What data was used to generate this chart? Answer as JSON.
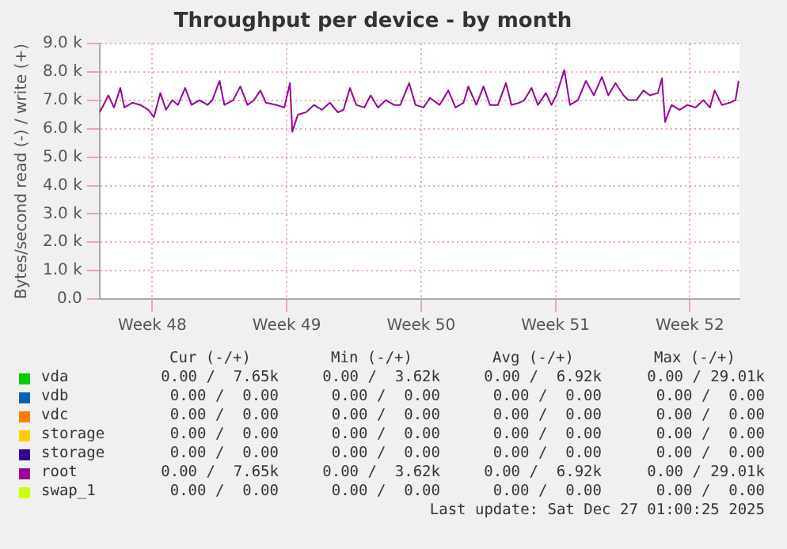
{
  "chart_data": {
    "type": "line",
    "title": "Throughput per device - by month",
    "ylabel": "Bytes/second read (-) / write (+)",
    "x": [
      "2025-11-23T17:00",
      "2025-11-23T22:00",
      "2025-11-24T04:00",
      "2025-11-24T11:00",
      "2025-11-24T19:00",
      "2025-11-25T00:00",
      "2025-11-25T10:00",
      "2025-11-25T20:00",
      "2025-11-26T06:00",
      "2025-11-26T13:00",
      "2025-11-26T21:00",
      "2025-11-27T04:00",
      "2025-11-27T12:00",
      "2025-11-27T19:00",
      "2025-11-28T04:00",
      "2025-11-28T12:00",
      "2025-11-28T22:00",
      "2025-11-29T08:00",
      "2025-11-29T14:00",
      "2025-11-29T23:00",
      "2025-11-30T05:00",
      "2025-11-30T16:00",
      "2025-12-01T01:00",
      "2025-12-01T10:00",
      "2025-12-01T18:00",
      "2025-12-02T02:00",
      "2025-12-02T09:00",
      "2025-12-02T22:00",
      "2025-12-03T08:00",
      "2025-12-03T15:00",
      "2025-12-03T18:00",
      "2025-12-04T01:00",
      "2025-12-04T11:00",
      "2025-12-04T21:00",
      "2025-12-05T07:00",
      "2025-12-05T17:00",
      "2025-12-06T03:00",
      "2025-12-06T10:00",
      "2025-12-06T18:00",
      "2025-12-07T02:00",
      "2025-12-07T12:00",
      "2025-12-07T20:00",
      "2025-12-08T05:00",
      "2025-12-08T15:00",
      "2025-12-09T01:00",
      "2025-12-09T09:00",
      "2025-12-09T20:00",
      "2025-12-10T04:00",
      "2025-12-10T14:00",
      "2025-12-10T22:00",
      "2025-12-11T10:00",
      "2025-12-11T21:00",
      "2025-12-12T06:00",
      "2025-12-12T16:00",
      "2025-12-12T22:00",
      "2025-12-13T08:00",
      "2025-12-13T17:00",
      "2025-12-14T01:00",
      "2025-12-14T11:00",
      "2025-12-14T21:00",
      "2025-12-15T04:00",
      "2025-12-15T14:00",
      "2025-12-15T20:00",
      "2025-12-16T05:00",
      "2025-12-16T13:00",
      "2025-12-16T23:00",
      "2025-12-17T06:00",
      "2025-12-17T12:00",
      "2025-12-17T22:00",
      "2025-12-18T05:00",
      "2025-12-18T15:00",
      "2025-12-19T01:00",
      "2025-12-19T11:00",
      "2025-12-19T21:00",
      "2025-12-20T05:00",
      "2025-12-20T14:00",
      "2025-12-21T00:00",
      "2025-12-21T06:00",
      "2025-12-21T16:00",
      "2025-12-22T01:00",
      "2025-12-22T09:00",
      "2025-12-22T19:00",
      "2025-12-23T00:00",
      "2025-12-23T04:00",
      "2025-12-23T12:00",
      "2025-12-23T22:00",
      "2025-12-24T08:00",
      "2025-12-24T18:00",
      "2025-12-25T04:00",
      "2025-12-25T12:00",
      "2025-12-25T18:00",
      "2025-12-26T03:00",
      "2025-12-26T13:00",
      "2025-12-26T20:00",
      "2025-12-27T00:00"
    ],
    "xlim": [
      "2025-11-23T17:00",
      "2025-12-27T01:00"
    ],
    "xticks": [
      {
        "value": "2025-11-26T11:00",
        "label": "Week 48"
      },
      {
        "value": "2025-12-03T11:00",
        "label": "Week 49"
      },
      {
        "value": "2025-12-10T11:00",
        "label": "Week 50"
      },
      {
        "value": "2025-12-17T11:00",
        "label": "Week 51"
      },
      {
        "value": "2025-12-24T11:00",
        "label": "Week 52"
      }
    ],
    "ylim": [
      0,
      9000
    ],
    "yticks": [
      {
        "value": 0,
        "label": "0.0"
      },
      {
        "value": 1000,
        "label": "1.0 k"
      },
      {
        "value": 2000,
        "label": "2.0 k"
      },
      {
        "value": 3000,
        "label": "3.0 k"
      },
      {
        "value": 4000,
        "label": "4.0 k"
      },
      {
        "value": 5000,
        "label": "5.0 k"
      },
      {
        "value": 6000,
        "label": "6.0 k"
      },
      {
        "value": 7000,
        "label": "7.0 k"
      },
      {
        "value": 8000,
        "label": "8.0 k"
      },
      {
        "value": 9000,
        "label": "9.0 k"
      }
    ],
    "grid": true,
    "legend": "bottom",
    "marker": "none",
    "line_style": "solid",
    "series": [
      {
        "name": "vda",
        "color": "#00cc00",
        "values": [
          null,
          null,
          null,
          null,
          null,
          null,
          null,
          null,
          null,
          null,
          null,
          null,
          null,
          null,
          null,
          null,
          null,
          null,
          null,
          null,
          null,
          null,
          null,
          null,
          null,
          null,
          null,
          null,
          null,
          null,
          null,
          null,
          null,
          null,
          null,
          null,
          null,
          null,
          null,
          null,
          null,
          null,
          null,
          null,
          null,
          null,
          null,
          null,
          null,
          null,
          null,
          null,
          null,
          null,
          null,
          null,
          null,
          null,
          null,
          null,
          null,
          null,
          null,
          null,
          null,
          null,
          null,
          null,
          null,
          null,
          null,
          null,
          null,
          null,
          null,
          null,
          null,
          null,
          null,
          null,
          null,
          null,
          null,
          null,
          null,
          null,
          null,
          null,
          null,
          null,
          null,
          null,
          null,
          null,
          null
        ]
      },
      {
        "name": "vdb",
        "color": "#0066b3",
        "values": [
          null,
          null,
          null,
          null,
          null,
          null,
          null,
          null,
          null,
          null,
          null,
          null,
          null,
          null,
          null,
          null,
          null,
          null,
          null,
          null,
          null,
          null,
          null,
          null,
          null,
          null,
          null,
          null,
          null,
          null,
          null,
          null,
          null,
          null,
          null,
          null,
          null,
          null,
          null,
          null,
          null,
          null,
          null,
          null,
          null,
          null,
          null,
          null,
          null,
          null,
          null,
          null,
          null,
          null,
          null,
          null,
          null,
          null,
          null,
          null,
          null,
          null,
          null,
          null,
          null,
          null,
          null,
          null,
          null,
          null,
          null,
          null,
          null,
          null,
          null,
          null,
          null,
          null,
          null,
          null,
          null,
          null,
          null,
          null,
          null,
          null,
          null,
          null,
          null,
          null,
          null,
          null,
          null,
          null,
          null
        ]
      },
      {
        "name": "vdc",
        "color": "#ff8000",
        "values": [
          null,
          null,
          null,
          null,
          null,
          null,
          null,
          null,
          null,
          null,
          null,
          null,
          null,
          null,
          null,
          null,
          null,
          null,
          null,
          null,
          null,
          null,
          null,
          null,
          null,
          null,
          null,
          null,
          null,
          null,
          null,
          null,
          null,
          null,
          null,
          null,
          null,
          null,
          null,
          null,
          null,
          null,
          null,
          null,
          null,
          null,
          null,
          null,
          null,
          null,
          null,
          null,
          null,
          null,
          null,
          null,
          null,
          null,
          null,
          null,
          null,
          null,
          null,
          null,
          null,
          null,
          null,
          null,
          null,
          null,
          null,
          null,
          null,
          null,
          null,
          null,
          null,
          null,
          null,
          null,
          null,
          null,
          null,
          null,
          null,
          null,
          null,
          null,
          null,
          null,
          null,
          null,
          null,
          null,
          null
        ]
      },
      {
        "name": "storage",
        "color": "#ffcc00",
        "values": [
          null,
          null,
          null,
          null,
          null,
          null,
          null,
          null,
          null,
          null,
          null,
          null,
          null,
          null,
          null,
          null,
          null,
          null,
          null,
          null,
          null,
          null,
          null,
          null,
          null,
          null,
          null,
          null,
          null,
          null,
          null,
          null,
          null,
          null,
          null,
          null,
          null,
          null,
          null,
          null,
          null,
          null,
          null,
          null,
          null,
          null,
          null,
          null,
          null,
          null,
          null,
          null,
          null,
          null,
          null,
          null,
          null,
          null,
          null,
          null,
          null,
          null,
          null,
          null,
          null,
          null,
          null,
          null,
          null,
          null,
          null,
          null,
          null,
          null,
          null,
          null,
          null,
          null,
          null,
          null,
          null,
          null,
          null,
          null,
          null,
          null,
          null,
          null,
          null,
          null,
          null,
          null,
          null,
          null,
          null
        ]
      },
      {
        "name": "storage",
        "color": "#330099",
        "values": [
          null,
          null,
          null,
          null,
          null,
          null,
          null,
          null,
          null,
          null,
          null,
          null,
          null,
          null,
          null,
          null,
          null,
          null,
          null,
          null,
          null,
          null,
          null,
          null,
          null,
          null,
          null,
          null,
          null,
          null,
          null,
          null,
          null,
          null,
          null,
          null,
          null,
          null,
          null,
          null,
          null,
          null,
          null,
          null,
          null,
          null,
          null,
          null,
          null,
          null,
          null,
          null,
          null,
          null,
          null,
          null,
          null,
          null,
          null,
          null,
          null,
          null,
          null,
          null,
          null,
          null,
          null,
          null,
          null,
          null,
          null,
          null,
          null,
          null,
          null,
          null,
          null,
          null,
          null,
          null,
          null,
          null,
          null,
          null,
          null,
          null,
          null,
          null,
          null,
          null,
          null,
          null,
          null,
          null,
          null
        ]
      },
      {
        "name": "root",
        "color": "#990099",
        "values": [
          6580,
          6840,
          7180,
          6750,
          7440,
          6750,
          6920,
          6840,
          6670,
          6410,
          7260,
          6670,
          7010,
          6840,
          7440,
          6840,
          7010,
          6840,
          7010,
          7690,
          6840,
          7010,
          7490,
          6840,
          7010,
          7350,
          6920,
          6840,
          6750,
          7610,
          5900,
          6500,
          6580,
          6840,
          6670,
          6920,
          6580,
          6670,
          7440,
          6840,
          6750,
          7180,
          6750,
          7010,
          6840,
          6840,
          7610,
          6840,
          6750,
          7090,
          6840,
          7350,
          6750,
          6920,
          7490,
          6840,
          7490,
          6840,
          6840,
          7610,
          6840,
          6920,
          7010,
          7440,
          6840,
          7260,
          6840,
          7180,
          8070,
          6840,
          7010,
          7690,
          7180,
          7830,
          7180,
          7610,
          7180,
          7010,
          7010,
          7350,
          7180,
          7260,
          7780,
          6240,
          6840,
          6670,
          6840,
          6750,
          7010,
          6750,
          7350,
          6840,
          6920,
          7010,
          7690
        ]
      },
      {
        "name": "swap_1",
        "color": "#ccff00",
        "values": [
          null,
          null,
          null,
          null,
          null,
          null,
          null,
          null,
          null,
          null,
          null,
          null,
          null,
          null,
          null,
          null,
          null,
          null,
          null,
          null,
          null,
          null,
          null,
          null,
          null,
          null,
          null,
          null,
          null,
          null,
          null,
          null,
          null,
          null,
          null,
          null,
          null,
          null,
          null,
          null,
          null,
          null,
          null,
          null,
          null,
          null,
          null,
          null,
          null,
          null,
          null,
          null,
          null,
          null,
          null,
          null,
          null,
          null,
          null,
          null,
          null,
          null,
          null,
          null,
          null,
          null,
          null,
          null,
          null,
          null,
          null,
          null,
          null,
          null,
          null,
          null,
          null,
          null,
          null,
          null,
          null,
          null,
          null,
          null,
          null,
          null,
          null,
          null,
          null,
          null,
          null,
          null,
          null,
          null,
          null
        ]
      }
    ],
    "annotations": [
      "Cur (-/+)",
      "Min (-/+)",
      "Avg (-/+)",
      "Max (-/+)",
      "0.00 /  7.65k",
      "0.00 /  3.62k",
      "0.00 /  6.92k",
      "0.00 / 29.01k",
      "0.00 /  0.00",
      "0.00 /  0.00",
      "0.00 /  0.00",
      "0.00 /  0.00",
      "0.00 /  0.00",
      "0.00 /  0.00",
      "0.00 /  0.00",
      "0.00 /  0.00",
      "0.00 /  0.00",
      "0.00 /  0.00",
      "0.00 /  0.00",
      "0.00 /  0.00",
      "0.00 /  0.00",
      "0.00 /  0.00",
      "0.00 /  0.00",
      "0.00 /  0.00",
      "0.00 /  7.65k",
      "0.00 /  3.62k",
      "0.00 /  6.92k",
      "0.00 / 29.01k",
      "0.00 /  0.00",
      "0.00 /  0.00",
      "0.00 /  0.00",
      "0.00 /  0.00",
      "Last update: Sat Dec 27 01:00:25 2025"
    ]
  }
}
